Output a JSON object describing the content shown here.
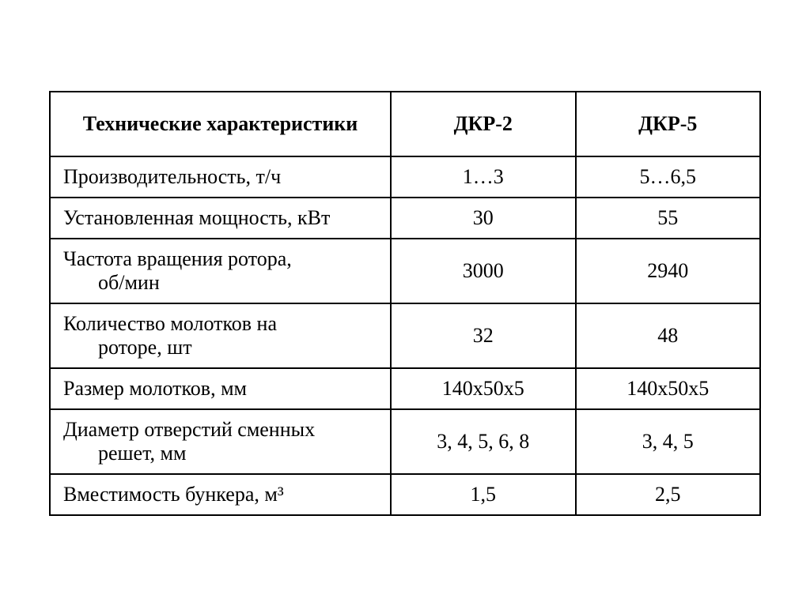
{
  "table": {
    "type": "table",
    "border_color": "#000000",
    "border_width": 2,
    "background_color": "#ffffff",
    "font_family": "Times New Roman",
    "header_fontsize": 26,
    "body_fontsize": 26,
    "columns": [
      {
        "key": "label",
        "header": "Технические характеристики",
        "align": "left",
        "width_percent": 48,
        "header_align": "center",
        "bold_header": true
      },
      {
        "key": "dkr2",
        "header": "ДКР-2",
        "align": "center",
        "width_percent": 26,
        "header_align": "center",
        "bold_header": true
      },
      {
        "key": "dkr5",
        "header": "ДКР-5",
        "align": "center",
        "width_percent": 26,
        "header_align": "center",
        "bold_header": true
      }
    ],
    "rows": [
      {
        "label": "Производительность, т/ч",
        "label_wrap": null,
        "dkr2": "1…3",
        "dkr5": "5…6,5"
      },
      {
        "label": "Установленная мощность, кВт",
        "label_wrap": null,
        "dkr2": "30",
        "dkr5": "55"
      },
      {
        "label": "Частота вращения ротора,",
        "label_wrap": "об/мин",
        "dkr2": "3000",
        "dkr5": "2940"
      },
      {
        "label": "Количество молотков на",
        "label_wrap": "роторе, шт",
        "dkr2": "32",
        "dkr5": "48"
      },
      {
        "label": "Размер молотков, мм",
        "label_wrap": null,
        "dkr2": "140х50х5",
        "dkr5": "140х50х5"
      },
      {
        "label": "Диаметр отверстий сменных",
        "label_wrap": "решет, мм",
        "dkr2": "3, 4, 5, 6, 8",
        "dkr5": "3, 4, 5"
      },
      {
        "label": "Вместимость бункера, м³",
        "label_wrap": null,
        "dkr2": "1,5",
        "dkr5": "2,5"
      }
    ]
  }
}
